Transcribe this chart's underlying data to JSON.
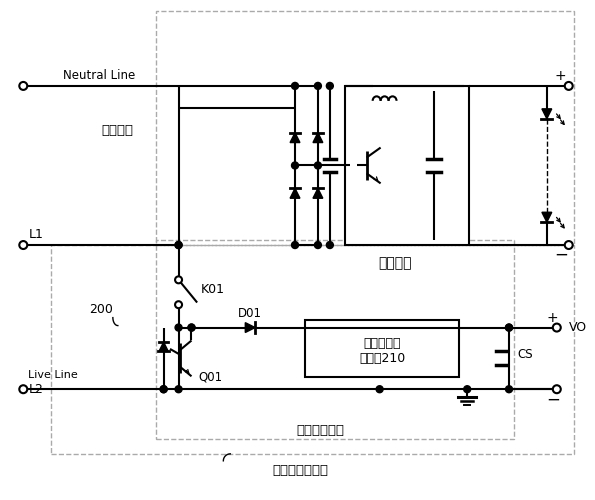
{
  "bg_color": "#ffffff",
  "fig_width": 5.95,
  "fig_height": 5.0,
  "dpi": 100,
  "labels": {
    "neutral_line": "Neutral Line",
    "ac_input": "交流输入",
    "load_circuit": "负载电路",
    "l1": "L1",
    "k01": "K01",
    "num_200": "200",
    "d01": "D01",
    "control_line1": "通态充电控",
    "control_line2": "制电路210",
    "q01": "Q01",
    "live_line1": "Live Line",
    "live_line2": "L2",
    "tong_tai": "通态充电电路",
    "single_wire": "单火线供电电路",
    "cs": "CS",
    "vo": "VO",
    "plus": "+",
    "minus": "−"
  }
}
